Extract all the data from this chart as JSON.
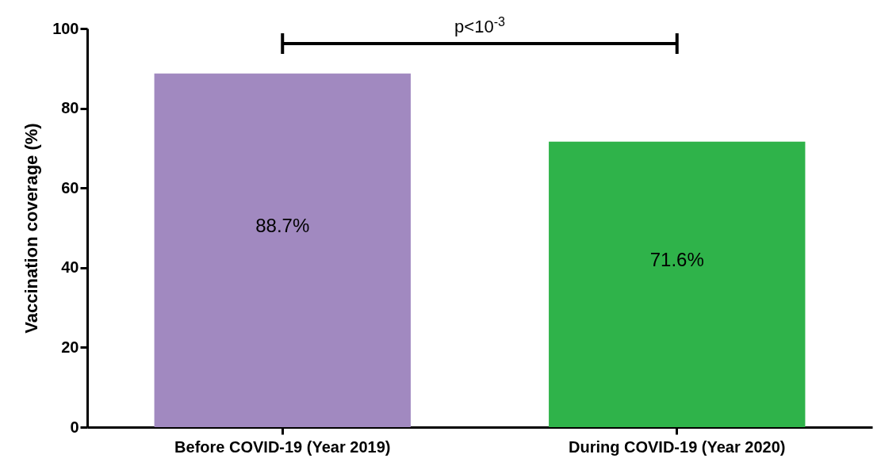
{
  "chart_data": {
    "type": "bar",
    "ylabel": "Vaccination coverage (%)",
    "categories": [
      "Before COVID-19 (Year 2019)",
      "During COVID-19 (Year 2020)"
    ],
    "values": [
      88.7,
      71.6
    ],
    "value_labels": [
      "88.7%",
      "71.6%"
    ],
    "colors": [
      "#a189c0",
      "#2fb34a"
    ],
    "ylim": [
      0,
      100
    ],
    "yticks": [
      0,
      20,
      40,
      60,
      80,
      100
    ],
    "annotations": [
      "p<10$^{-3}$"
    ],
    "grid": false
  }
}
